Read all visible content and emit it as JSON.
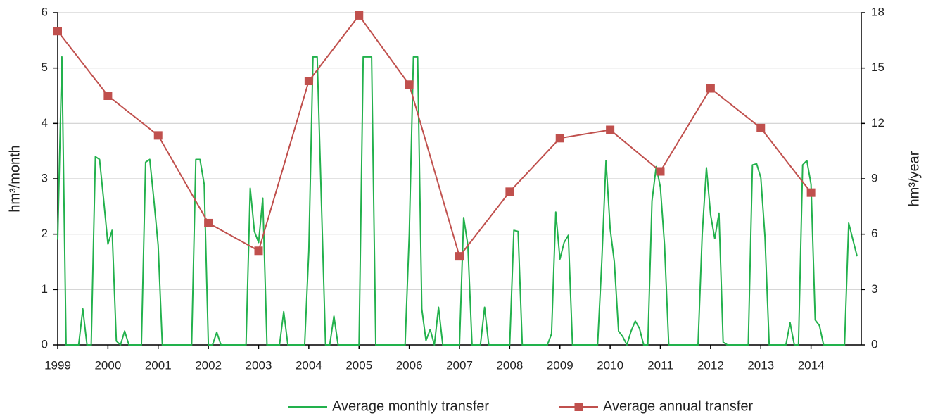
{
  "chart_data": {
    "type": "line",
    "y_label": "hm³/month",
    "y2_label": "hm³/year",
    "xlim": [
      1999,
      2015
    ],
    "xticks": [
      1999,
      2000,
      2001,
      2002,
      2003,
      2004,
      2005,
      2006,
      2007,
      2008,
      2009,
      2010,
      2011,
      2012,
      2013,
      2014
    ],
    "ylim": [
      0,
      6
    ],
    "yticks": [
      0,
      1,
      2,
      3,
      4,
      5,
      6
    ],
    "y2lim": [
      0,
      18
    ],
    "y2ticks": [
      0,
      3,
      6,
      9,
      12,
      15,
      18
    ],
    "grid": true,
    "legend": "bottom",
    "series": [
      {
        "name": "Average monthly transfer",
        "color": "#22b14c",
        "marker": "none",
        "x": [
          1999,
          1999.083,
          1999.167,
          1999.25,
          1999.333,
          1999.417,
          1999.5,
          1999.583,
          1999.667,
          1999.75,
          1999.833,
          1999.917,
          2000,
          2000.083,
          2000.167,
          2000.25,
          2000.333,
          2000.417,
          2000.5,
          2000.583,
          2000.667,
          2000.75,
          2000.833,
          2000.917,
          2001,
          2001.083,
          2001.167,
          2001.25,
          2001.333,
          2001.417,
          2001.5,
          2001.583,
          2001.667,
          2001.75,
          2001.833,
          2001.917,
          2002,
          2002.083,
          2002.167,
          2002.25,
          2002.333,
          2002.417,
          2002.5,
          2002.583,
          2002.667,
          2002.75,
          2002.833,
          2002.917,
          2003,
          2003.083,
          2003.167,
          2003.25,
          2003.333,
          2003.417,
          2003.5,
          2003.583,
          2003.667,
          2003.75,
          2003.833,
          2003.917,
          2004,
          2004.083,
          2004.167,
          2004.25,
          2004.333,
          2004.417,
          2004.5,
          2004.583,
          2004.667,
          2004.75,
          2004.833,
          2004.917,
          2005,
          2005.083,
          2005.167,
          2005.25,
          2005.333,
          2005.417,
          2005.5,
          2005.583,
          2005.667,
          2005.75,
          2005.833,
          2005.917,
          2006,
          2006.083,
          2006.167,
          2006.25,
          2006.333,
          2006.417,
          2006.5,
          2006.583,
          2006.667,
          2006.75,
          2006.833,
          2006.917,
          2007,
          2007.083,
          2007.167,
          2007.25,
          2007.333,
          2007.417,
          2007.5,
          2007.583,
          2007.667,
          2007.75,
          2007.833,
          2007.917,
          2008,
          2008.083,
          2008.167,
          2008.25,
          2008.333,
          2008.417,
          2008.5,
          2008.583,
          2008.667,
          2008.75,
          2008.833,
          2008.917,
          2009,
          2009.083,
          2009.167,
          2009.25,
          2009.333,
          2009.417,
          2009.5,
          2009.583,
          2009.667,
          2009.75,
          2009.833,
          2009.917,
          2010,
          2010.083,
          2010.167,
          2010.25,
          2010.333,
          2010.417,
          2010.5,
          2010.583,
          2010.667,
          2010.75,
          2010.833,
          2010.917,
          2011,
          2011.083,
          2011.167,
          2011.25,
          2011.333,
          2011.417,
          2011.5,
          2011.583,
          2011.667,
          2011.75,
          2011.833,
          2011.917,
          2012,
          2012.083,
          2012.167,
          2012.25,
          2012.333,
          2012.417,
          2012.5,
          2012.583,
          2012.667,
          2012.75,
          2012.833,
          2012.917,
          2013,
          2013.083,
          2013.167,
          2013.25,
          2013.333,
          2013.417,
          2013.5,
          2013.583,
          2013.667,
          2013.75,
          2013.833,
          2013.917,
          2014,
          2014.083,
          2014.167,
          2014.25,
          2014.333,
          2014.417,
          2014.5,
          2014.583,
          2014.667,
          2014.75,
          2014.833,
          2014.917
        ],
        "values": [
          1.9,
          5.2,
          0,
          0,
          0,
          0,
          0.65,
          0,
          0,
          3.4,
          3.35,
          2.6,
          1.82,
          2.07,
          0.07,
          0,
          0.25,
          0,
          0,
          0,
          0,
          3.3,
          3.35,
          2.6,
          1.8,
          0,
          0,
          0,
          0,
          0,
          0,
          0,
          0,
          3.35,
          3.35,
          2.9,
          0,
          0,
          0.23,
          0,
          0,
          0,
          0,
          0,
          0,
          0,
          2.83,
          2.05,
          1.85,
          2.65,
          0,
          0,
          0,
          0,
          0.6,
          0,
          0,
          0,
          0,
          0,
          1.7,
          5.2,
          5.2,
          2.6,
          0,
          0,
          0.52,
          0,
          0,
          0,
          0,
          0,
          0,
          5.2,
          5.2,
          5.2,
          0,
          0,
          0,
          0,
          0,
          0,
          0,
          0,
          2.0,
          5.2,
          5.2,
          0.65,
          0.08,
          0.28,
          0,
          0.68,
          0,
          0,
          0,
          0,
          0,
          2.3,
          1.8,
          0,
          0,
          0,
          0.68,
          0,
          0,
          0,
          0,
          0,
          0,
          2.07,
          2.05,
          0,
          0,
          0,
          0,
          0,
          0,
          0,
          0.2,
          2.4,
          1.55,
          1.85,
          1.98,
          0,
          0,
          0,
          0,
          0,
          0,
          0,
          1.5,
          3.33,
          2.1,
          1.5,
          0.25,
          0.15,
          0,
          0.25,
          0.43,
          0.3,
          0,
          0,
          2.6,
          3.22,
          2.85,
          1.8,
          0,
          0,
          0,
          0,
          0,
          0,
          0,
          0,
          2.0,
          3.2,
          2.35,
          1.92,
          2.38,
          0.05,
          0,
          0,
          0,
          0,
          0,
          0,
          3.25,
          3.27,
          3.02,
          1.95,
          0,
          0,
          0,
          0,
          0,
          0.4,
          0,
          0,
          3.25,
          3.33,
          2.9,
          0.45,
          0.35,
          0,
          0,
          0,
          0,
          0,
          0,
          2.2,
          1.9,
          1.6
        ]
      },
      {
        "name": "Average annual transfer",
        "color": "#c0504d",
        "marker": "square",
        "axis": "y2",
        "x": [
          1999,
          2000,
          2001,
          2002,
          2003,
          2004,
          2005,
          2006,
          2007,
          2008,
          2009,
          2010,
          2011,
          2012,
          2013,
          2014
        ],
        "values": [
          17.0,
          13.5,
          11.35,
          6.6,
          5.1,
          14.3,
          17.85,
          14.1,
          4.8,
          8.3,
          11.2,
          11.65,
          9.4,
          13.9,
          11.75,
          8.25
        ]
      }
    ]
  }
}
